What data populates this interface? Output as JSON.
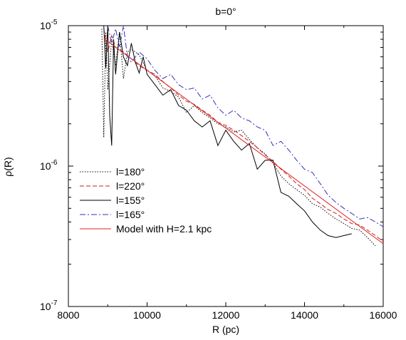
{
  "chart_data": {
    "type": "line",
    "title": "b=0°",
    "xlabel": "R (pc)",
    "ylabel": "ρ(R)",
    "xlim": [
      8000,
      16000
    ],
    "ylim": [
      1e-07,
      1e-05
    ],
    "yscale": "log",
    "grid": false,
    "legend_position": "center-left",
    "x_ticks": [
      8000,
      10000,
      12000,
      14000,
      16000
    ],
    "x_tick_labels": [
      "8000",
      "10000",
      "12000",
      "14000",
      "16000"
    ],
    "y_ticks": [
      1e-07,
      1e-06,
      1e-05
    ],
    "y_tick_labels": [
      {
        "base": "10",
        "exp": "-7"
      },
      {
        "base": "10",
        "exp": "-6"
      },
      {
        "base": "10",
        "exp": "-5"
      }
    ],
    "series": [
      {
        "name": "l=180°",
        "color": "#000000",
        "style": "dotted",
        "points": [
          [
            8850,
            9.5e-06
          ],
          [
            8900,
            1.6e-06
          ],
          [
            8950,
            9e-06
          ],
          [
            9000,
            3.5e-06
          ],
          [
            9100,
            8e-06
          ],
          [
            9200,
            5.2e-06
          ],
          [
            9300,
            9e-06
          ],
          [
            9400,
            4.2e-06
          ],
          [
            9500,
            6.5e-06
          ],
          [
            9600,
            6.8e-06
          ],
          [
            9800,
            6.2e-06
          ],
          [
            10000,
            4.8e-06
          ],
          [
            10200,
            4.4e-06
          ],
          [
            10400,
            3.6e-06
          ],
          [
            10600,
            3.4e-06
          ],
          [
            10800,
            3.1e-06
          ],
          [
            11000,
            2.4e-06
          ],
          [
            11200,
            2.7e-06
          ],
          [
            11400,
            2.4e-06
          ],
          [
            11600,
            2.2e-06
          ],
          [
            11800,
            2e-06
          ],
          [
            12000,
            1.9e-06
          ],
          [
            12200,
            1.75e-06
          ],
          [
            12400,
            1.8e-06
          ],
          [
            12600,
            1.55e-06
          ],
          [
            12800,
            1.35e-06
          ],
          [
            13000,
            1.22e-06
          ],
          [
            13200,
            1.05e-06
          ],
          [
            13400,
            8.5e-07
          ],
          [
            13600,
            7.5e-07
          ],
          [
            13800,
            6.8e-07
          ],
          [
            14000,
            6.2e-07
          ],
          [
            14200,
            5.4e-07
          ],
          [
            14400,
            5.1e-07
          ],
          [
            14600,
            4.6e-07
          ],
          [
            14800,
            4.2e-07
          ],
          [
            15000,
            3.9e-07
          ],
          [
            15200,
            3.6e-07
          ],
          [
            15400,
            3.5e-07
          ],
          [
            15600,
            3.1e-07
          ],
          [
            15800,
            2.7e-07
          ]
        ]
      },
      {
        "name": "l=220°",
        "color": "#cc2222",
        "style": "dashed",
        "points": [
          [
            8900,
            9.5e-06
          ],
          [
            9000,
            6.5e-06
          ],
          [
            9100,
            8.5e-06
          ],
          [
            9200,
            7e-06
          ],
          [
            9400,
            6.5e-06
          ],
          [
            9600,
            5.8e-06
          ],
          [
            9800,
            5.2e-06
          ],
          [
            10000,
            4.8e-06
          ],
          [
            10200,
            4.5e-06
          ],
          [
            10400,
            4e-06
          ],
          [
            10600,
            3.6e-06
          ],
          [
            10800,
            3.2e-06
          ],
          [
            11000,
            2.9e-06
          ],
          [
            11200,
            2.75e-06
          ],
          [
            11400,
            2.5e-06
          ],
          [
            11600,
            2.3e-06
          ],
          [
            11800,
            2.05e-06
          ],
          [
            12000,
            1.95e-06
          ],
          [
            12200,
            1.8e-06
          ],
          [
            12400,
            1.65e-06
          ],
          [
            12600,
            1.5e-06
          ],
          [
            12800,
            1.35e-06
          ],
          [
            13000,
            1.2e-06
          ],
          [
            13200,
            1.08e-06
          ],
          [
            13400,
            9.5e-07
          ],
          [
            13600,
            8.5e-07
          ],
          [
            13800,
            7.5e-07
          ],
          [
            14000,
            6.8e-07
          ],
          [
            14200,
            5.9e-07
          ],
          [
            14400,
            5.4e-07
          ],
          [
            14600,
            4.9e-07
          ],
          [
            14800,
            4.6e-07
          ],
          [
            15000,
            4.2e-07
          ],
          [
            15200,
            3.9e-07
          ],
          [
            15400,
            3.8e-07
          ],
          [
            15600,
            3.5e-07
          ],
          [
            15800,
            3.2e-07
          ],
          [
            16000,
            2.9e-07
          ]
        ]
      },
      {
        "name": "l=155°",
        "color": "#000000",
        "style": "solid",
        "points": [
          [
            8900,
            1e-05
          ],
          [
            8950,
            5e-06
          ],
          [
            9000,
            1e-05
          ],
          [
            9050,
            2.3e-06
          ],
          [
            9100,
            1.4e-06
          ],
          [
            9150,
            8e-06
          ],
          [
            9200,
            4.5e-06
          ],
          [
            9300,
            9e-06
          ],
          [
            9400,
            6e-06
          ],
          [
            9500,
            5.2e-06
          ],
          [
            9600,
            7.5e-06
          ],
          [
            9700,
            5.5e-06
          ],
          [
            9800,
            4.6e-06
          ],
          [
            9900,
            6e-06
          ],
          [
            10000,
            4.5e-06
          ],
          [
            10200,
            3.8e-06
          ],
          [
            10400,
            3.2e-06
          ],
          [
            10600,
            3.5e-06
          ],
          [
            10800,
            2.7e-06
          ],
          [
            11000,
            2.5e-06
          ],
          [
            11200,
            2.1e-06
          ],
          [
            11400,
            1.9e-06
          ],
          [
            11600,
            2.1e-06
          ],
          [
            11800,
            1.4e-06
          ],
          [
            12000,
            1.8e-06
          ],
          [
            12200,
            1.5e-06
          ],
          [
            12400,
            1.3e-06
          ],
          [
            12600,
            1.45e-06
          ],
          [
            12800,
            9.5e-07
          ],
          [
            13000,
            1.1e-06
          ],
          [
            13200,
            1.1e-06
          ],
          [
            13400,
            6.5e-07
          ],
          [
            13600,
            6.1e-07
          ],
          [
            13800,
            5.4e-07
          ],
          [
            14000,
            4.8e-07
          ],
          [
            14200,
            4e-07
          ],
          [
            14400,
            3.5e-07
          ],
          [
            14600,
            3.2e-07
          ],
          [
            14800,
            3.1e-07
          ],
          [
            15000,
            3.2e-07
          ],
          [
            15200,
            3.3e-07
          ]
        ]
      },
      {
        "name": "l=165°",
        "color": "#3333bb",
        "style": "dashdot",
        "points": [
          [
            9000,
            1e-05
          ],
          [
            9100,
            7.5e-06
          ],
          [
            9200,
            9.5e-06
          ],
          [
            9300,
            7e-06
          ],
          [
            9400,
            1e-05
          ],
          [
            9500,
            6e-06
          ],
          [
            9600,
            5.5e-06
          ],
          [
            9800,
            6.5e-06
          ],
          [
            10000,
            5.8e-06
          ],
          [
            10200,
            4.8e-06
          ],
          [
            10400,
            4.2e-06
          ],
          [
            10600,
            4.5e-06
          ],
          [
            10800,
            3.8e-06
          ],
          [
            11000,
            3.5e-06
          ],
          [
            11200,
            3.6e-06
          ],
          [
            11400,
            3e-06
          ],
          [
            11600,
            3.2e-06
          ],
          [
            11800,
            2.6e-06
          ],
          [
            12000,
            2.3e-06
          ],
          [
            12200,
            2.5e-06
          ],
          [
            12400,
            2.2e-06
          ],
          [
            12600,
            2.1e-06
          ],
          [
            12800,
            1.9e-06
          ],
          [
            13000,
            1.8e-06
          ],
          [
            13200,
            1.4e-06
          ],
          [
            13400,
            1.5e-06
          ],
          [
            13600,
            1.3e-06
          ],
          [
            13800,
            1.1e-06
          ],
          [
            14000,
            9.5e-07
          ],
          [
            14200,
            9e-07
          ],
          [
            14400,
            7.5e-07
          ],
          [
            14600,
            6.2e-07
          ],
          [
            14800,
            5.5e-07
          ],
          [
            15000,
            5e-07
          ],
          [
            15200,
            4.6e-07
          ],
          [
            15400,
            4.2e-07
          ],
          [
            15600,
            4.3e-07
          ],
          [
            15800,
            4e-07
          ],
          [
            16000,
            3.7e-07
          ]
        ]
      },
      {
        "name": "Model with H=2.1 kpc",
        "color": "#dd2222",
        "style": "solid",
        "points": [
          [
            8900,
            8.1e-06
          ],
          [
            16000,
            2.8e-07
          ]
        ]
      }
    ]
  }
}
